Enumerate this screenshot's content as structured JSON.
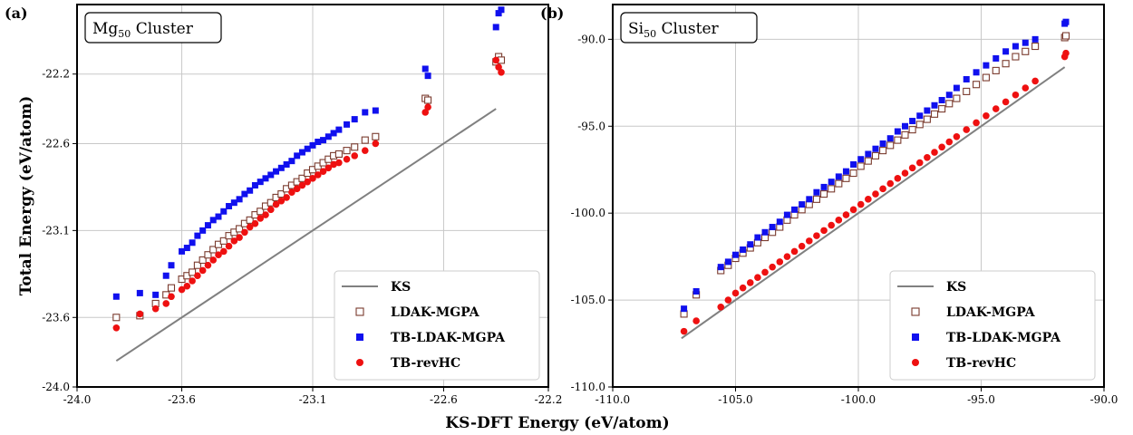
{
  "figure": {
    "xlabel": "KS-DFT Energy (eV/atom)",
    "ylabel": "Total Energy (eV/atom)"
  },
  "chart_data": [
    {
      "type": "scatter",
      "panel_label": "(a)",
      "cluster_name": "Mg",
      "cluster_subscript": "50",
      "cluster_suffix": " Cluster",
      "xlim": [
        -24.0,
        -22.2
      ],
      "ylim": [
        -24.0,
        -21.8
      ],
      "xticks": [
        -24.0,
        -23.6,
        -23.1,
        -22.6,
        -22.2
      ],
      "xtick_labels": [
        "-24.0",
        "-23.6",
        "-23.1",
        "-22.6",
        "-22.2"
      ],
      "yticks": [
        -24.0,
        -23.6,
        -23.1,
        -22.6,
        -22.2
      ],
      "ytick_labels": [
        "-24.0",
        "-23.6",
        "-23.1",
        "-22.6",
        "-22.2"
      ],
      "grid": true,
      "legend_position": "lower-right",
      "ks_line": [
        [
          -23.85,
          -23.85
        ],
        [
          -22.4,
          -22.4
        ]
      ],
      "x": [
        -23.85,
        -23.76,
        -23.7,
        -23.66,
        -23.64,
        -23.6,
        -23.58,
        -23.56,
        -23.54,
        -23.52,
        -23.5,
        -23.48,
        -23.46,
        -23.44,
        -23.42,
        -23.4,
        -23.38,
        -23.36,
        -23.34,
        -23.32,
        -23.3,
        -23.28,
        -23.26,
        -23.24,
        -23.22,
        -23.2,
        -23.18,
        -23.16,
        -23.14,
        -23.12,
        -23.1,
        -23.08,
        -23.06,
        -23.04,
        -23.02,
        -23.0,
        -22.97,
        -22.94,
        -22.9,
        -22.86,
        -22.67,
        -22.66,
        -22.4,
        -22.39,
        -22.38
      ],
      "series": [
        {
          "name": "KS",
          "marker": "line",
          "color": "#808080"
        },
        {
          "name": "LDAK-MGPA",
          "marker": "open-square",
          "color": "#7a3b2e",
          "values": [
            -23.6,
            -23.59,
            -23.52,
            -23.47,
            -23.43,
            -23.38,
            -23.36,
            -23.34,
            -23.3,
            -23.27,
            -23.24,
            -23.21,
            -23.18,
            -23.16,
            -23.13,
            -23.11,
            -23.09,
            -23.06,
            -23.04,
            -23.01,
            -22.99,
            -22.96,
            -22.94,
            -22.91,
            -22.89,
            -22.86,
            -22.84,
            -22.82,
            -22.8,
            -22.77,
            -22.75,
            -22.73,
            -22.71,
            -22.69,
            -22.67,
            -22.66,
            -22.64,
            -22.62,
            -22.58,
            -22.56,
            -22.34,
            -22.35,
            -22.13,
            -22.1,
            -22.12
          ]
        },
        {
          "name": "TB-LDAK-MGPA",
          "marker": "filled-square",
          "color": "#1010ee",
          "values": [
            -23.48,
            -23.46,
            -23.47,
            -23.36,
            -23.3,
            -23.22,
            -23.2,
            -23.17,
            -23.13,
            -23.1,
            -23.07,
            -23.04,
            -23.02,
            -22.99,
            -22.96,
            -22.94,
            -22.92,
            -22.89,
            -22.87,
            -22.84,
            -22.82,
            -22.8,
            -22.78,
            -22.76,
            -22.74,
            -22.72,
            -22.7,
            -22.67,
            -22.65,
            -22.63,
            -22.61,
            -22.59,
            -22.58,
            -22.56,
            -22.54,
            -22.52,
            -22.49,
            -22.46,
            -22.42,
            -22.41,
            -22.17,
            -22.21,
            -21.93,
            -21.85,
            -21.83
          ]
        },
        {
          "name": "TB-revHC",
          "marker": "filled-circle",
          "color": "#ee1010",
          "values": [
            -23.66,
            -23.58,
            -23.55,
            -23.52,
            -23.48,
            -23.44,
            -23.42,
            -23.39,
            -23.36,
            -23.33,
            -23.3,
            -23.27,
            -23.24,
            -23.22,
            -23.19,
            -23.16,
            -23.14,
            -23.11,
            -23.08,
            -23.06,
            -23.03,
            -23.01,
            -22.98,
            -22.95,
            -22.93,
            -22.91,
            -22.88,
            -22.86,
            -22.84,
            -22.82,
            -22.8,
            -22.78,
            -22.76,
            -22.74,
            -22.72,
            -22.71,
            -22.69,
            -22.67,
            -22.64,
            -22.6,
            -22.42,
            -22.39,
            -22.12,
            -22.16,
            -22.19
          ]
        }
      ]
    },
    {
      "type": "scatter",
      "panel_label": "(b)",
      "cluster_name": "Si",
      "cluster_subscript": "50",
      "cluster_suffix": " Cluster",
      "xlim": [
        -110.0,
        -90.0
      ],
      "ylim": [
        -110.0,
        -88.0
      ],
      "xticks": [
        -110.0,
        -105.0,
        -100.0,
        -95.0,
        -90.0
      ],
      "xtick_labels": [
        "-110.0",
        "-105.0",
        "-100.0",
        "-95.0",
        "-90.0"
      ],
      "yticks": [
        -110.0,
        -105.0,
        -100.0,
        -95.0,
        -90.0
      ],
      "ytick_labels": [
        "-110.0",
        "-105.0",
        "-100.0",
        "-95.0",
        "-90.0"
      ],
      "grid": true,
      "legend_position": "lower-right",
      "ks_line": [
        [
          -107.2,
          -107.2
        ],
        [
          -91.6,
          -91.6
        ]
      ],
      "x": [
        -107.1,
        -106.6,
        -105.6,
        -105.3,
        -105.0,
        -104.7,
        -104.4,
        -104.1,
        -103.8,
        -103.5,
        -103.2,
        -102.9,
        -102.6,
        -102.3,
        -102.0,
        -101.7,
        -101.4,
        -101.1,
        -100.8,
        -100.5,
        -100.2,
        -99.9,
        -99.6,
        -99.3,
        -99.0,
        -98.7,
        -98.4,
        -98.1,
        -97.8,
        -97.5,
        -97.2,
        -96.9,
        -96.6,
        -96.3,
        -96.0,
        -95.6,
        -95.2,
        -94.8,
        -94.4,
        -94.0,
        -93.6,
        -93.2,
        -92.8,
        -91.6,
        -91.55
      ],
      "series": [
        {
          "name": "KS",
          "marker": "line",
          "color": "#808080"
        },
        {
          "name": "LDAK-MGPA",
          "marker": "open-square",
          "color": "#7a3b2e",
          "values": [
            -105.8,
            -104.7,
            -103.3,
            -103.0,
            -102.6,
            -102.3,
            -102.0,
            -101.7,
            -101.4,
            -101.1,
            -100.8,
            -100.4,
            -100.1,
            -99.8,
            -99.5,
            -99.2,
            -98.9,
            -98.6,
            -98.3,
            -98.0,
            -97.7,
            -97.3,
            -97.0,
            -96.7,
            -96.4,
            -96.1,
            -95.8,
            -95.5,
            -95.2,
            -94.9,
            -94.6,
            -94.3,
            -94.0,
            -93.7,
            -93.4,
            -93.0,
            -92.6,
            -92.2,
            -91.8,
            -91.4,
            -91.0,
            -90.7,
            -90.4,
            -89.9,
            -89.8
          ]
        },
        {
          "name": "TB-LDAK-MGPA",
          "marker": "filled-square",
          "color": "#1010ee",
          "values": [
            -105.5,
            -104.5,
            -103.1,
            -102.8,
            -102.4,
            -102.1,
            -101.8,
            -101.4,
            -101.1,
            -100.8,
            -100.5,
            -100.1,
            -99.8,
            -99.5,
            -99.2,
            -98.8,
            -98.5,
            -98.2,
            -97.9,
            -97.6,
            -97.2,
            -96.9,
            -96.6,
            -96.3,
            -96.0,
            -95.7,
            -95.3,
            -95.0,
            -94.7,
            -94.4,
            -94.1,
            -93.8,
            -93.5,
            -93.2,
            -92.8,
            -92.3,
            -91.9,
            -91.5,
            -91.1,
            -90.7,
            -90.4,
            -90.2,
            -90.0,
            -89.1,
            -89.0
          ]
        },
        {
          "name": "TB-revHC",
          "marker": "filled-circle",
          "color": "#ee1010",
          "values": [
            -106.8,
            -106.2,
            -105.4,
            -105.0,
            -104.6,
            -104.3,
            -104.0,
            -103.7,
            -103.4,
            -103.1,
            -102.8,
            -102.5,
            -102.2,
            -101.9,
            -101.6,
            -101.3,
            -101.0,
            -100.7,
            -100.4,
            -100.1,
            -99.8,
            -99.5,
            -99.2,
            -98.9,
            -98.6,
            -98.3,
            -98.0,
            -97.7,
            -97.4,
            -97.1,
            -96.8,
            -96.5,
            -96.2,
            -95.9,
            -95.6,
            -95.2,
            -94.8,
            -94.4,
            -94.0,
            -93.6,
            -93.2,
            -92.8,
            -92.4,
            -91.0,
            -90.8
          ]
        }
      ]
    }
  ]
}
